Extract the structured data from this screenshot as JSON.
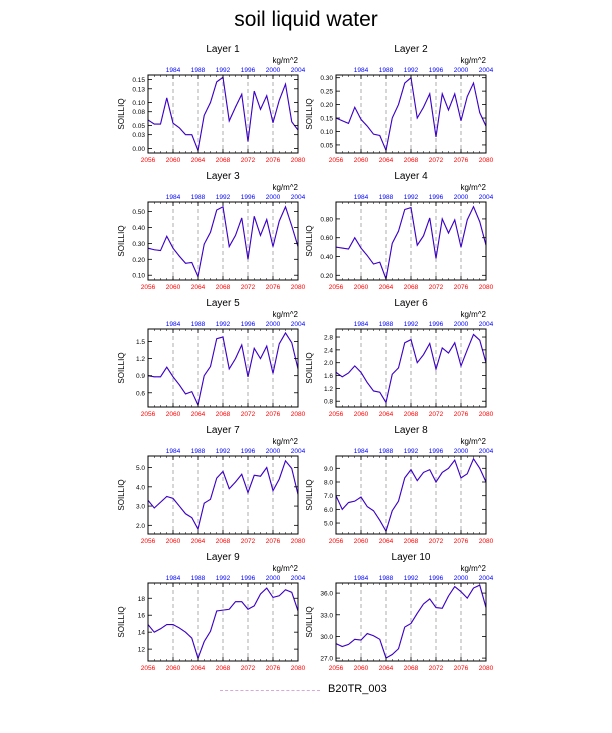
{
  "title": "soil liquid water",
  "legend": {
    "label": "B20TR_003",
    "color": "#d8a8d8"
  },
  "chart_data": {
    "type": "line",
    "units": "kg/m^2",
    "ylabel": "SOILLIQ",
    "bottom_x_ticks": [
      "2056",
      "2060",
      "2064",
      "2068",
      "2072",
      "2076",
      "2080"
    ],
    "top_x_ticks": [
      "1984",
      "1988",
      "1992",
      "1996",
      "2000",
      "2004"
    ],
    "x_range": [
      2056,
      2080
    ],
    "x": [
      2056,
      2057,
      2058,
      2059,
      2060,
      2061,
      2062,
      2063,
      2064,
      2065,
      2066,
      2067,
      2068,
      2069,
      2070,
      2071,
      2072,
      2073,
      2074,
      2075,
      2076,
      2077,
      2078,
      2079,
      2080
    ],
    "dashed_vlines": [
      2060,
      2064,
      2068,
      2072,
      2076
    ],
    "line_color": "#3a00c8",
    "bottom_tick_color": "#ff0000",
    "top_tick_color": "#0000ff",
    "panels": [
      {
        "title": "Layer 1",
        "yticks": [
          "0.00",
          "0.03",
          "0.05",
          "0.08",
          "0.10",
          "0.13",
          "0.15"
        ],
        "ylim": [
          -0.01,
          0.16
        ],
        "values": [
          0.062,
          0.053,
          0.053,
          0.11,
          0.055,
          0.045,
          0.03,
          0.03,
          -0.005,
          0.072,
          0.1,
          0.145,
          0.155,
          0.06,
          0.09,
          0.118,
          0.015,
          0.125,
          0.085,
          0.115,
          0.056,
          0.105,
          0.14,
          0.058,
          0.04
        ]
      },
      {
        "title": "Layer 2",
        "yticks": [
          "0.05",
          "0.10",
          "0.15",
          "0.20",
          "0.25",
          "0.30"
        ],
        "ylim": [
          0.02,
          0.31
        ],
        "values": [
          0.15,
          0.14,
          0.13,
          0.19,
          0.145,
          0.12,
          0.09,
          0.085,
          0.03,
          0.15,
          0.2,
          0.28,
          0.3,
          0.15,
          0.19,
          0.24,
          0.08,
          0.24,
          0.18,
          0.24,
          0.14,
          0.23,
          0.28,
          0.17,
          0.12
        ]
      },
      {
        "title": "Layer 3",
        "yticks": [
          "0.10",
          "0.20",
          "0.30",
          "0.40",
          "0.50"
        ],
        "ylim": [
          0.07,
          0.56
        ],
        "values": [
          0.27,
          0.26,
          0.255,
          0.345,
          0.27,
          0.22,
          0.175,
          0.18,
          0.09,
          0.295,
          0.37,
          0.51,
          0.53,
          0.28,
          0.35,
          0.46,
          0.2,
          0.47,
          0.35,
          0.45,
          0.28,
          0.44,
          0.53,
          0.41,
          0.28
        ]
      },
      {
        "title": "Layer 4",
        "yticks": [
          "0.20",
          "0.40",
          "0.60",
          "0.80"
        ],
        "ylim": [
          0.15,
          0.98
        ],
        "values": [
          0.5,
          0.49,
          0.48,
          0.6,
          0.49,
          0.41,
          0.32,
          0.34,
          0.16,
          0.54,
          0.67,
          0.9,
          0.92,
          0.52,
          0.62,
          0.81,
          0.38,
          0.8,
          0.65,
          0.79,
          0.5,
          0.79,
          0.93,
          0.77,
          0.52
        ]
      },
      {
        "title": "Layer 5",
        "yticks": [
          "0.6",
          "0.9",
          "1.2",
          "1.5"
        ],
        "ylim": [
          0.35,
          1.72
        ],
        "values": [
          0.9,
          0.88,
          0.88,
          1.05,
          0.88,
          0.74,
          0.58,
          0.62,
          0.38,
          0.9,
          1.06,
          1.55,
          1.58,
          1.02,
          1.2,
          1.44,
          0.88,
          1.38,
          1.2,
          1.42,
          0.94,
          1.46,
          1.65,
          1.48,
          1.02
        ]
      },
      {
        "title": "Layer 6",
        "yticks": [
          "0.8",
          "1.2",
          "1.6",
          "2.0",
          "2.4",
          "2.8"
        ],
        "ylim": [
          0.62,
          3.05
        ],
        "values": [
          1.7,
          1.56,
          1.68,
          1.9,
          1.7,
          1.38,
          1.12,
          1.08,
          0.76,
          1.64,
          1.84,
          2.62,
          2.72,
          2.0,
          2.25,
          2.6,
          1.8,
          2.46,
          2.3,
          2.62,
          1.9,
          2.4,
          2.88,
          2.7,
          2.0
        ]
      },
      {
        "title": "Layer 7",
        "yticks": [
          "2.0",
          "3.0",
          "4.0",
          "5.0"
        ],
        "ylim": [
          1.55,
          5.6
        ],
        "values": [
          3.3,
          2.9,
          3.2,
          3.5,
          3.4,
          3.0,
          2.6,
          2.4,
          1.8,
          3.15,
          3.35,
          4.45,
          4.8,
          3.9,
          4.25,
          4.65,
          3.7,
          4.6,
          4.55,
          5.0,
          3.8,
          4.4,
          5.35,
          4.95,
          3.6
        ]
      },
      {
        "title": "Layer 8",
        "yticks": [
          "5.0",
          "6.0",
          "7.0",
          "8.0",
          "9.0"
        ],
        "ylim": [
          4.2,
          9.9
        ],
        "values": [
          7.0,
          6.0,
          6.5,
          6.6,
          6.9,
          6.2,
          5.9,
          5.2,
          4.4,
          5.9,
          6.6,
          8.3,
          8.9,
          8.1,
          8.7,
          8.9,
          8.0,
          8.7,
          9.0,
          9.6,
          8.3,
          8.6,
          9.7,
          9.0,
          8.0
        ]
      },
      {
        "title": "Layer 9",
        "yticks": [
          "12",
          "14",
          "16",
          "18"
        ],
        "ylim": [
          10.6,
          19.8
        ],
        "values": [
          14.9,
          14.0,
          14.4,
          14.9,
          14.9,
          14.5,
          14.0,
          13.3,
          10.9,
          12.9,
          14.1,
          16.5,
          16.6,
          16.7,
          17.6,
          17.6,
          16.7,
          17.1,
          18.5,
          19.2,
          18.1,
          18.3,
          19.0,
          18.7,
          16.5
        ]
      },
      {
        "title": "Layer 10",
        "yticks": [
          "27.0",
          "30.0",
          "33.0",
          "36.0"
        ],
        "ylim": [
          26.6,
          37.4
        ],
        "values": [
          29.0,
          28.6,
          28.9,
          29.6,
          29.5,
          30.4,
          30.1,
          29.6,
          27.0,
          27.5,
          28.3,
          31.3,
          31.8,
          33.2,
          34.5,
          35.2,
          34.0,
          33.9,
          35.6,
          36.9,
          36.2,
          35.3,
          36.7,
          37.1,
          34.0
        ]
      }
    ]
  }
}
